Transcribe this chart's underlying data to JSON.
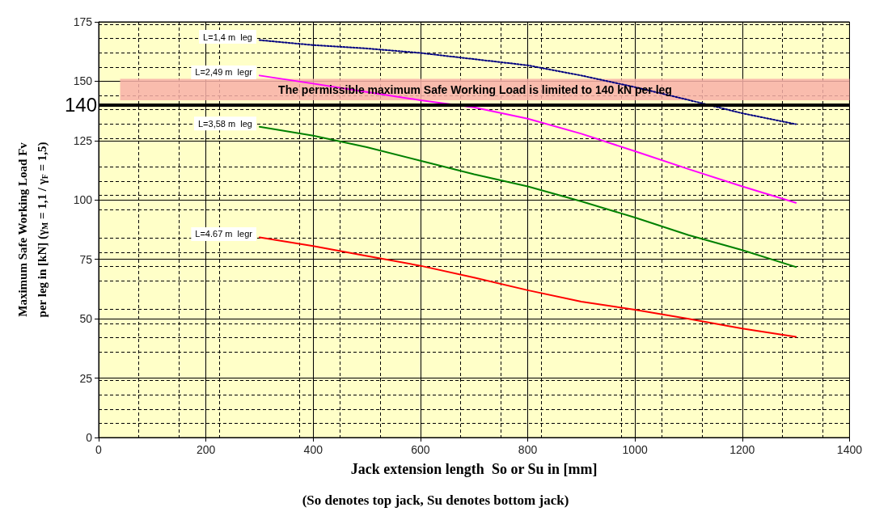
{
  "chart_data": {
    "type": "line",
    "xlabel": "Jack extension length  So or Su in [mm]",
    "ylabel": "Maximum Safe Working Load Fv\nper leg in [kN] (γ$_{M}$ = 1,1 / γ$_{F}$ = 1,5)",
    "annotations": [
      "(So denotes top jack, Su denotes bottom jack)"
    ],
    "x": [
      300,
      400,
      500,
      600,
      700,
      800,
      900,
      1000,
      1100,
      1200,
      1300
    ],
    "series": [
      {
        "name": "L=1,4 m  leg",
        "color": "#000080",
        "line_style": "dotted",
        "values": [
          167.3,
          165.2,
          163.8,
          161.9,
          159.3,
          156.7,
          152.4,
          147.5,
          142.1,
          136.5,
          131.9
        ]
      },
      {
        "name": "L=2,49 m  legr",
        "color": "#ff00ff",
        "values": [
          152.4,
          149,
          145.5,
          142,
          139,
          134.2,
          127.9,
          120.5,
          113,
          105.7,
          98.8
        ]
      },
      {
        "name": "L=3,58 m  leg",
        "color": "#008000",
        "values": [
          130.8,
          127.1,
          122.2,
          116.5,
          110.8,
          105.7,
          99.4,
          92.6,
          85.2,
          78.9,
          71.8
        ]
      },
      {
        "name": "L=4.67 m  legr",
        "color": "#ff0000",
        "values": [
          84.3,
          80.6,
          76.4,
          72.3,
          67.3,
          62,
          57.2,
          53.8,
          50,
          45.9,
          42.4
        ]
      }
    ],
    "xlim": [
      0,
      1400
    ],
    "xticks": [
      0,
      200,
      400,
      600,
      800,
      1000,
      1200,
      1400
    ],
    "ylim": [
      0,
      175
    ],
    "yticks": [
      0,
      25,
      50,
      75,
      100,
      125,
      150,
      175
    ],
    "ref_lines": [
      {
        "axis": "y",
        "value": 140,
        "label": "140",
        "color": "#000000"
      }
    ],
    "bands": [
      {
        "axis": "y",
        "from": 142,
        "to": 151,
        "label": "The permissible maximum Safe Working Load is limited to 140 kN per leg",
        "color": "#f8b0a8"
      }
    ],
    "grid": true,
    "legend": false,
    "marker": "none",
    "line_style": "solid"
  }
}
